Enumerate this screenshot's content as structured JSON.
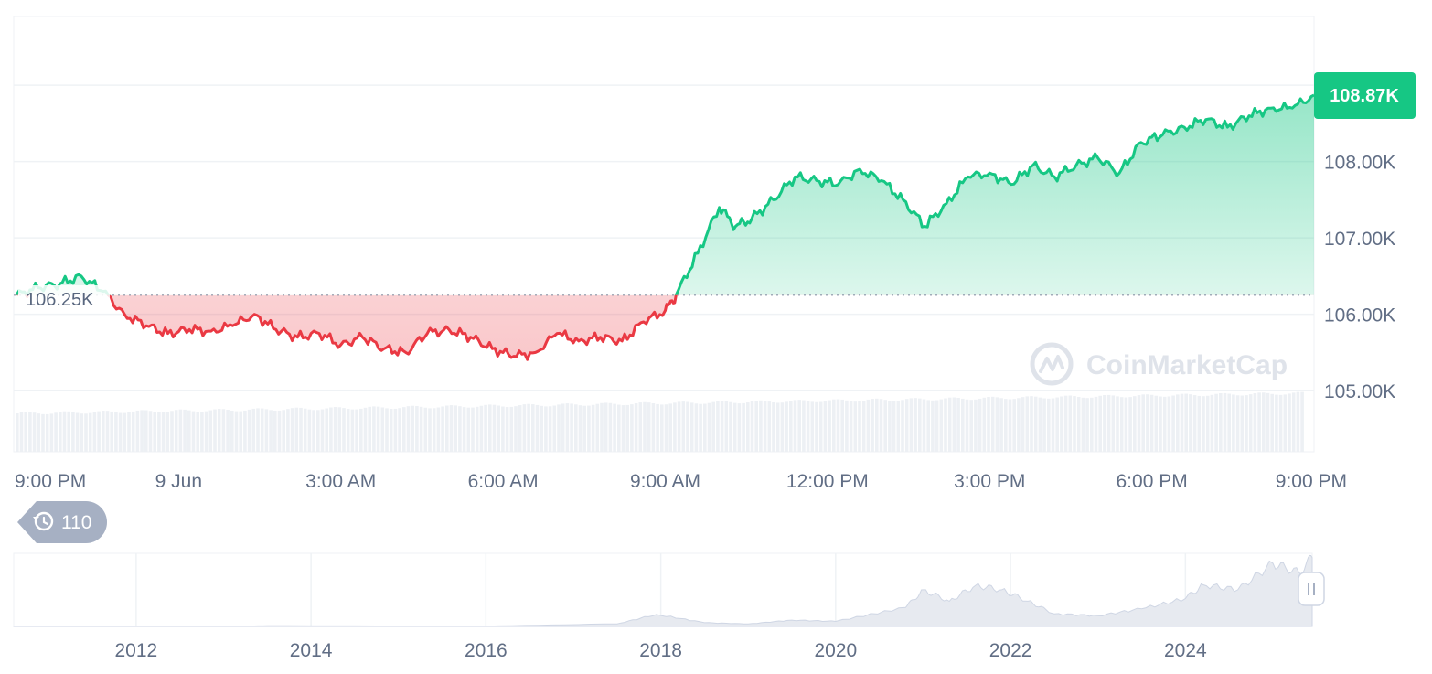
{
  "chart_data": [
    {
      "type": "line",
      "colors": {
        "up": "#16c784",
        "down": "#ea3943"
      },
      "base_line": {
        "value": 106.25,
        "label": "106.25K"
      },
      "current_price": {
        "value": 108.87,
        "label": "108.87K"
      },
      "ylim": [
        104.2,
        109.9
      ],
      "yticks": [
        {
          "value": 108.0,
          "label": "108.00K"
        },
        {
          "value": 107.0,
          "label": "107.00K"
        },
        {
          "value": 106.0,
          "label": "106.00K"
        },
        {
          "value": 105.0,
          "label": "105.00K"
        }
      ],
      "xlim": [
        -0.05,
        24.0
      ],
      "xticks": [
        {
          "value": 0,
          "label": "9:00 PM"
        },
        {
          "value": 3,
          "label": "9 Jun"
        },
        {
          "value": 6,
          "label": "3:00 AM"
        },
        {
          "value": 9,
          "label": "6:00 AM"
        },
        {
          "value": 12,
          "label": "9:00 AM"
        },
        {
          "value": 15,
          "label": "12:00 PM"
        },
        {
          "value": 18,
          "label": "3:00 PM"
        },
        {
          "value": 21,
          "label": "6:00 PM"
        },
        {
          "value": 24,
          "label": "9:00 PM"
        }
      ],
      "series": [
        {
          "x": [
            0,
            0.4,
            0.8,
            1.2,
            1.6,
            2.0,
            2.4,
            2.8,
            3.2,
            3.6,
            4.0,
            4.4,
            4.8,
            5.2,
            5.6,
            6.0,
            6.4,
            6.8,
            7.2,
            7.6,
            8.0,
            8.4,
            8.8,
            9.2,
            9.6,
            10.0,
            10.4,
            10.8,
            11.2,
            11.6,
            12.0,
            12.2,
            12.6,
            13.0,
            13.3,
            13.6,
            14.0,
            14.4,
            14.8,
            15.2,
            15.6,
            16.0,
            16.4,
            16.8,
            17.2,
            17.6,
            18.0,
            18.4,
            18.8,
            19.2,
            19.6,
            20.0,
            20.4,
            20.8,
            21.2,
            21.6,
            22.0,
            22.4,
            22.8,
            23.2,
            23.6,
            24.0
          ],
          "values": [
            106.25,
            106.35,
            106.4,
            106.5,
            106.3,
            106.0,
            105.85,
            105.75,
            105.8,
            105.78,
            105.85,
            106.0,
            105.8,
            105.7,
            105.75,
            105.6,
            105.7,
            105.55,
            105.5,
            105.75,
            105.8,
            105.7,
            105.55,
            105.45,
            105.5,
            105.75,
            105.65,
            105.7,
            105.65,
            105.9,
            106.05,
            106.25,
            106.8,
            107.4,
            107.15,
            107.25,
            107.5,
            107.8,
            107.75,
            107.7,
            107.9,
            107.75,
            107.5,
            107.15,
            107.45,
            107.8,
            107.85,
            107.7,
            107.95,
            107.8,
            107.95,
            108.05,
            107.85,
            108.25,
            108.35,
            108.45,
            108.55,
            108.45,
            108.6,
            108.7,
            108.7,
            108.87
          ]
        }
      ]
    },
    {
      "type": "area",
      "xticks": [
        {
          "value": 2012,
          "label": "2012"
        },
        {
          "value": 2014,
          "label": "2014"
        },
        {
          "value": 2016,
          "label": "2016"
        },
        {
          "value": 2018,
          "label": "2018"
        },
        {
          "value": 2020,
          "label": "2020"
        },
        {
          "value": 2022,
          "label": "2022"
        },
        {
          "value": 2024,
          "label": "2024"
        }
      ],
      "xlim": [
        2010.6,
        2025.45
      ],
      "ylim": [
        0,
        110
      ],
      "series": [
        {
          "x": [
            2010.6,
            2013.0,
            2013.5,
            2016.0,
            2017.5,
            2017.95,
            2018.5,
            2019.0,
            2019.5,
            2020.0,
            2020.8,
            2021.0,
            2021.3,
            2021.6,
            2021.9,
            2022.2,
            2022.5,
            2023.0,
            2023.5,
            2024.0,
            2024.2,
            2024.6,
            2025.0,
            2025.3,
            2025.45
          ],
          "values": [
            0.1,
            0.2,
            1,
            0.5,
            4,
            19,
            6,
            4,
            10,
            8,
            30,
            58,
            40,
            65,
            58,
            40,
            20,
            17,
            28,
            44,
            66,
            58,
            100,
            85,
            109
          ]
        }
      ]
    }
  ],
  "history_badge": {
    "count": "110",
    "icon": "history-clock-icon"
  },
  "watermark": {
    "text": "CoinMarketCap",
    "icon": "coinmarketcap-logo-icon"
  },
  "range_handle": {
    "icon": "drag-handle-icon"
  }
}
